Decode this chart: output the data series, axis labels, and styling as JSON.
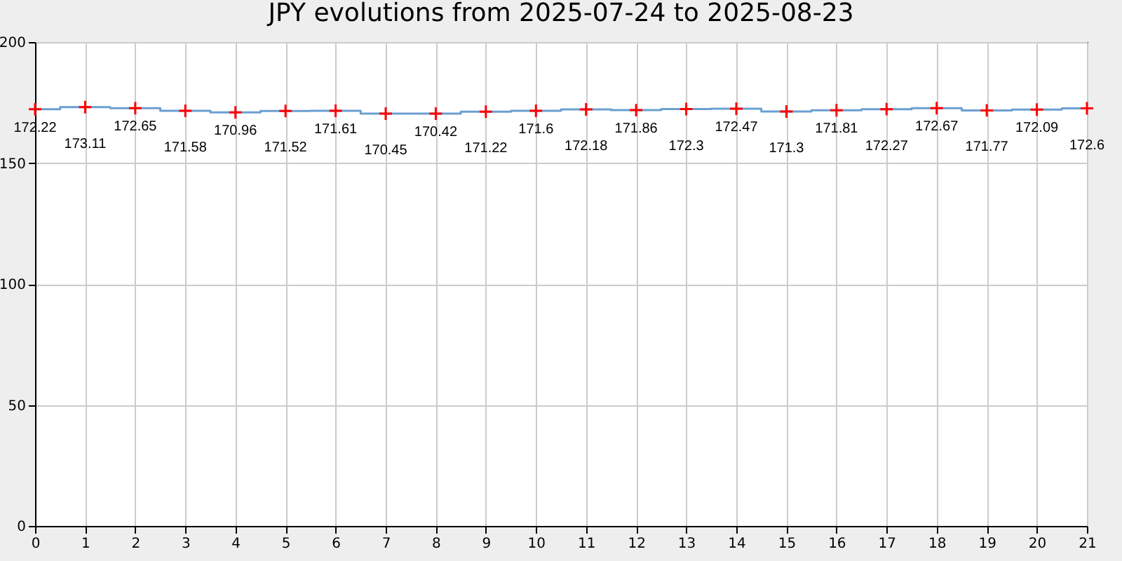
{
  "chart_data": {
    "type": "step",
    "title": "JPY evolutions from 2025-07-24 to 2025-08-23",
    "x": [
      0,
      1,
      2,
      3,
      4,
      5,
      6,
      7,
      8,
      9,
      10,
      11,
      12,
      13,
      14,
      15,
      16,
      17,
      18,
      19,
      20,
      21
    ],
    "series": [
      {
        "color": "#6b9fd1",
        "colors": [
          "#ff0000",
          "#ff0000",
          "#ff0000",
          "#ff0000",
          "#ff0000",
          "#ff0000",
          "#ff0000",
          "#ff0000",
          "#ff0000",
          "#ff0000",
          "#ff0000",
          "#ff0000",
          "#ff0000",
          "#ff0000",
          "#ff0000",
          "#ff0000",
          "#ff0000",
          "#ff0000",
          "#ff0000",
          "#ff0000",
          "#ff0000",
          "#ff0000"
        ],
        "values": [
          172.22,
          173.11,
          172.65,
          171.58,
          170.96,
          171.52,
          171.61,
          170.45,
          170.42,
          171.22,
          171.6,
          172.18,
          171.86,
          172.3,
          172.47,
          171.3,
          171.81,
          172.27,
          172.67,
          171.77,
          172.09,
          172.6
        ]
      }
    ],
    "xlim": [
      0,
      21
    ],
    "xticks": [
      0,
      1,
      2,
      3,
      4,
      5,
      6,
      7,
      8,
      9,
      10,
      11,
      12,
      13,
      14,
      15,
      16,
      17,
      18,
      19,
      20,
      21
    ],
    "ylim": [
      0,
      200
    ],
    "yticks": [
      0,
      50,
      100,
      150,
      200
    ],
    "grid": true,
    "marker": "cross",
    "data_labels": true
  }
}
